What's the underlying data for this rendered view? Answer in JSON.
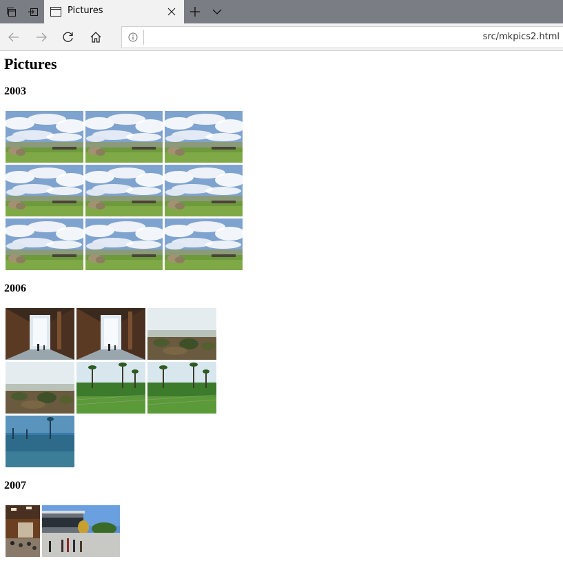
{
  "browser": {
    "tab_title": "Pictures",
    "address_url": "src/mkpics2.html"
  },
  "page": {
    "heading": "Pictures",
    "sections": [
      {
        "year": "2003",
        "photos": [
          "clouds-field",
          "clouds-field",
          "clouds-field",
          "clouds-field",
          "clouds-field",
          "clouds-field",
          "clouds-field",
          "clouds-field",
          "clouds-field"
        ]
      },
      {
        "year": "2006",
        "photos": [
          "corridor",
          "corridor",
          "savanna",
          "savanna",
          "palms",
          "palms",
          "palms-blue"
        ]
      },
      {
        "year": "2007",
        "photos": [
          "crowd-hall",
          "building-plaza"
        ]
      }
    ]
  },
  "icons": {
    "tab_manager": "tab-manager-icon",
    "set_aside": "set-tabs-aside-icon",
    "page": "page-icon",
    "close": "close-icon",
    "new_tab": "plus-icon",
    "tab_list": "chevron-down-icon",
    "back": "back-arrow-icon",
    "forward": "forward-arrow-icon",
    "refresh": "refresh-icon",
    "home": "home-icon",
    "info": "info-icon"
  }
}
